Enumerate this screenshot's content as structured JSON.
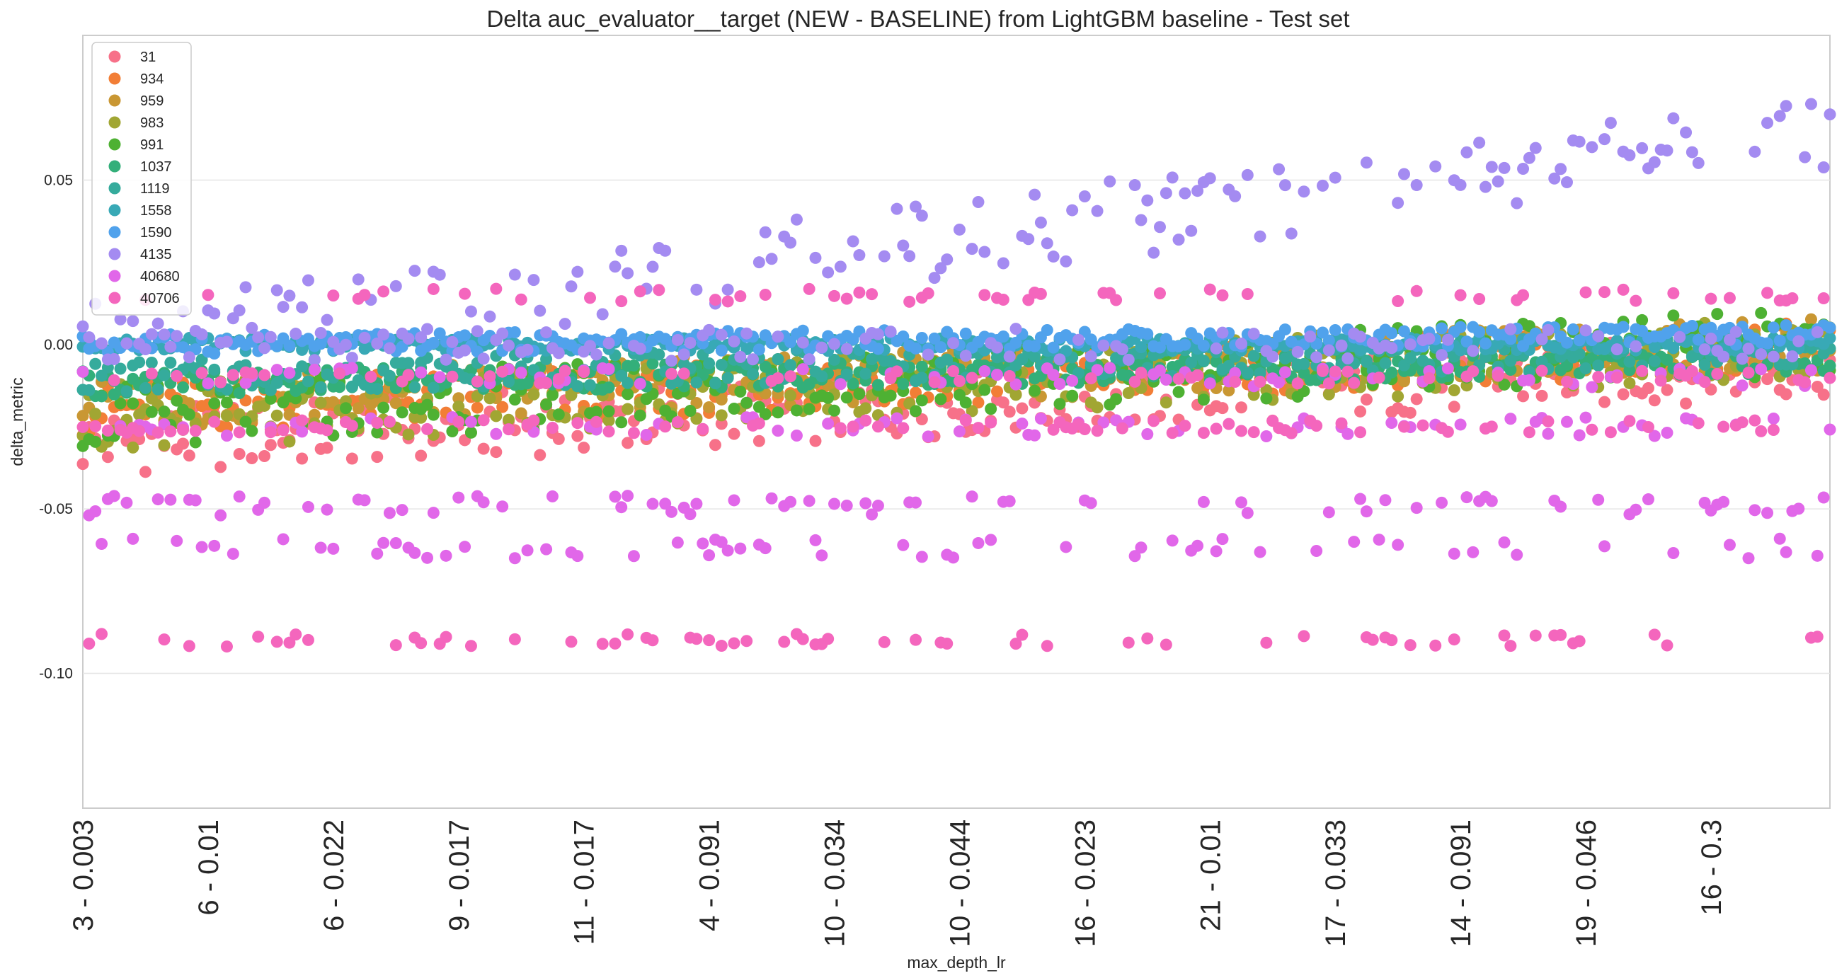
{
  "chart_data": {
    "type": "scatter",
    "title": "Delta auc_evaluator__target (NEW - BASELINE) from LightGBM baseline - Test set",
    "xlabel": "max_depth_lr",
    "ylabel": "delta_metric",
    "ylim": [
      -0.141,
      0.094
    ],
    "yticks": [
      0.05,
      0.0,
      -0.05,
      -0.1
    ],
    "ytick_labels": [
      "0.05",
      "0.00",
      "-0.05",
      "-0.10"
    ],
    "x_count": 280,
    "xtick_labels": [
      "3 - 0.003",
      "6 - 0.01",
      "6 - 0.022",
      "9 - 0.017",
      "11 - 0.017",
      "4 - 0.091",
      "10 - 0.034",
      "10 - 0.044",
      "16 - 0.023",
      "21 - 0.01",
      "17 - 0.033",
      "14 - 0.091",
      "19 - 0.046",
      "16 - 0.3"
    ],
    "xtick_step": 20,
    "grid": "horizontal",
    "legend_position": "top-left",
    "series": [
      {
        "name": "31",
        "color": "#f77189",
        "pattern": "neg",
        "a": -0.03,
        "b": -0.006,
        "jitter": 0.01
      },
      {
        "name": "934",
        "color": "#f27e36",
        "pattern": "neg",
        "a": -0.02,
        "b": -0.001,
        "jitter": 0.008
      },
      {
        "name": "959",
        "color": "#c99733",
        "pattern": "neg",
        "a": -0.018,
        "b": 0.0,
        "jitter": 0.008
      },
      {
        "name": "983",
        "color": "#a1a633",
        "pattern": "neg",
        "a": -0.022,
        "b": -0.001,
        "jitter": 0.01
      },
      {
        "name": "991",
        "color": "#4eb133",
        "pattern": "neg",
        "a": -0.022,
        "b": 0.001,
        "jitter": 0.01
      },
      {
        "name": "1037",
        "color": "#33af7a",
        "pattern": "neg",
        "a": -0.012,
        "b": -0.005,
        "jitter": 0.004
      },
      {
        "name": "1119",
        "color": "#35ab9c",
        "pattern": "neg",
        "a": -0.01,
        "b": -0.002,
        "jitter": 0.005
      },
      {
        "name": "1558",
        "color": "#38a9b6",
        "pattern": "near",
        "a": 0.0,
        "b": 0.0,
        "jitter": 0.002
      },
      {
        "name": "1590",
        "color": "#50a2ec",
        "pattern": "near",
        "a": 0.0,
        "b": 0.003,
        "jitter": 0.003
      },
      {
        "name": "4135",
        "color": "#a48bf1",
        "pattern": "pos",
        "a": 0.005,
        "b": 0.065,
        "jitter": 0.012
      },
      {
        "name": "40680",
        "color": "#e167e9",
        "pattern": "bands",
        "a": -0.062,
        "b": -0.049,
        "jitter": 0.006
      },
      {
        "name": "40706",
        "color": "#f466bd",
        "pattern": "bands",
        "a": -0.09,
        "b": 0.015,
        "jitter": 0.004
      }
    ]
  }
}
